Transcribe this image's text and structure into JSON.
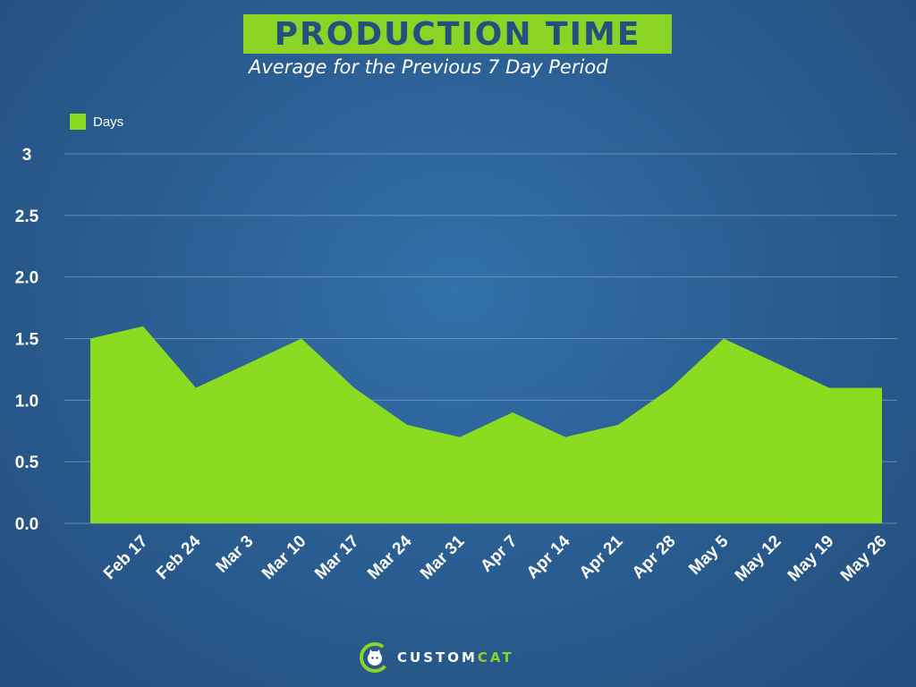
{
  "title": "PRODUCTION TIME",
  "subtitle": "Average for the Previous 7 Day Period",
  "brand": {
    "word_main": "CUSTOM",
    "word_accent": "CAT"
  },
  "colors": {
    "background": "#2b5f94",
    "title_box": "#8bd425",
    "title_text": "#23507c",
    "area": "#8bdc21",
    "grid": "#7f9fc2"
  },
  "chart_data": {
    "type": "area",
    "title": "PRODUCTION TIME",
    "subtitle": "Average for the Previous 7 Day Period",
    "xlabel": "",
    "ylabel": "",
    "legend": "top-left",
    "grid": true,
    "ylim": [
      0,
      3
    ],
    "y_ticks": [
      "0.0",
      "0.5",
      "1.0",
      "1.5",
      "2.0",
      "2.5",
      "3"
    ],
    "y_tick_values": [
      0,
      0.5,
      1.0,
      1.5,
      2.0,
      2.5,
      3
    ],
    "x": [
      "",
      "Feb 17",
      "Feb 24",
      "Mar 3",
      "Mar 10",
      "Mar 17",
      "Mar 24",
      "Mar 31",
      "Apr 7",
      "Apr 14",
      "Apr 21",
      "Apr 28",
      "May 5",
      "May 12",
      "May 19",
      "May 26"
    ],
    "series": [
      {
        "name": "Days",
        "values": [
          1.5,
          1.6,
          1.1,
          1.3,
          1.5,
          1.1,
          0.8,
          0.7,
          0.9,
          0.7,
          0.8,
          1.1,
          1.5,
          1.3,
          1.1,
          1.1
        ]
      }
    ]
  }
}
